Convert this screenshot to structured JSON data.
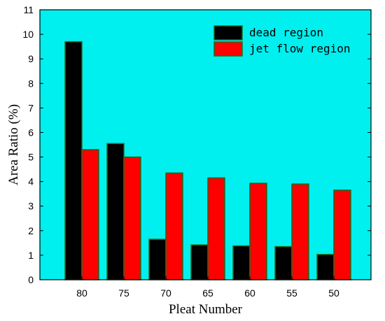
{
  "chart_data": {
    "type": "bar",
    "categories": [
      "80",
      "75",
      "70",
      "65",
      "60",
      "55",
      "50"
    ],
    "series": [
      {
        "name": "dead region",
        "values": [
          9.7,
          5.55,
          1.65,
          1.42,
          1.38,
          1.35,
          1.03
        ]
      },
      {
        "name": "jet flow region",
        "values": [
          5.3,
          5.0,
          4.35,
          4.15,
          3.93,
          3.9,
          3.65
        ]
      }
    ],
    "xlabel": "Pleat Number",
    "ylabel": "Area Ratio (%)",
    "ylim": [
      0,
      11
    ],
    "yticks": [
      0,
      1,
      2,
      3,
      4,
      5,
      6,
      7,
      8,
      9,
      10,
      11
    ],
    "grid": false,
    "legend_position": "top-right",
    "colors": {
      "plot_background": "#00f0f0",
      "dead region": "#000000",
      "jet flow region": "#ff0000",
      "bar_edge": "#1d6b1d"
    }
  }
}
